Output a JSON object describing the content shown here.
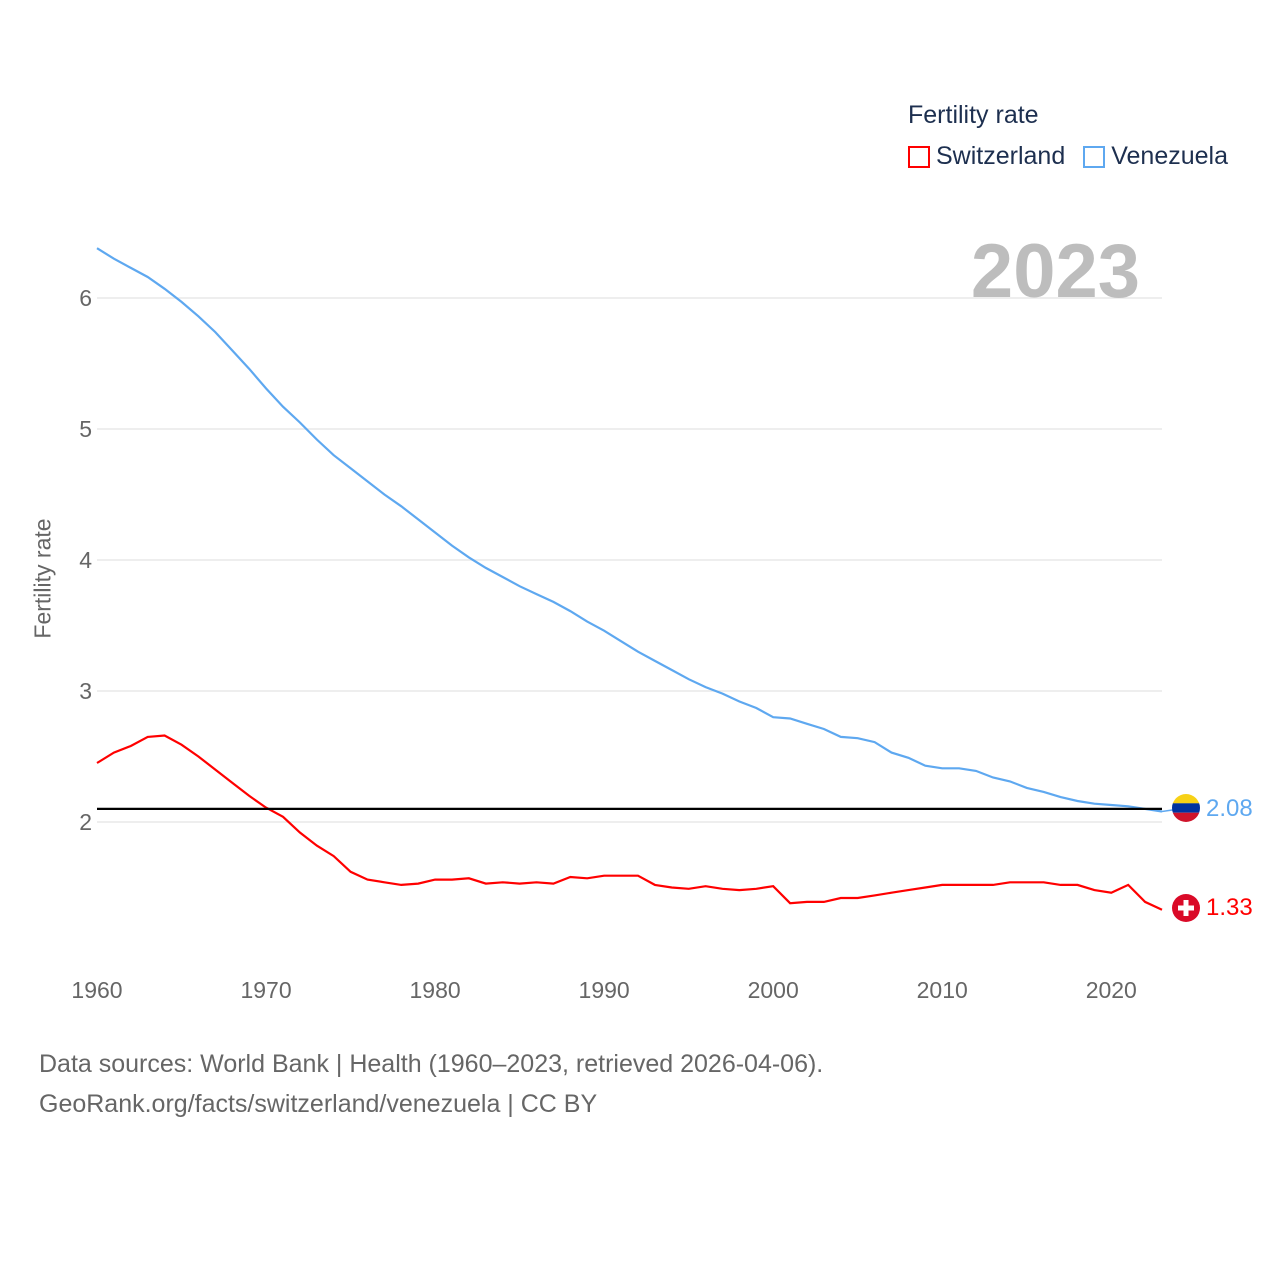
{
  "chart_data": {
    "type": "line",
    "title": "Fertility rate",
    "xlabel": "",
    "ylabel": "Fertility rate",
    "year_label": "2023",
    "x": [
      1960,
      1961,
      1962,
      1963,
      1964,
      1965,
      1966,
      1967,
      1968,
      1969,
      1970,
      1971,
      1972,
      1973,
      1974,
      1975,
      1976,
      1977,
      1978,
      1979,
      1980,
      1981,
      1982,
      1983,
      1984,
      1985,
      1986,
      1987,
      1988,
      1989,
      1990,
      1991,
      1992,
      1993,
      1994,
      1995,
      1996,
      1997,
      1998,
      1999,
      2000,
      2001,
      2002,
      2003,
      2004,
      2005,
      2006,
      2007,
      2008,
      2009,
      2010,
      2011,
      2012,
      2013,
      2014,
      2015,
      2016,
      2017,
      2018,
      2019,
      2020,
      2021,
      2022,
      2023
    ],
    "series": [
      {
        "name": "Switzerland",
        "color": "#ff0000",
        "end_label": "1.33",
        "values": [
          2.45,
          2.53,
          2.58,
          2.65,
          2.66,
          2.59,
          2.5,
          2.4,
          2.3,
          2.2,
          2.11,
          2.04,
          1.92,
          1.82,
          1.74,
          1.62,
          1.56,
          1.54,
          1.52,
          1.53,
          1.56,
          1.56,
          1.57,
          1.53,
          1.54,
          1.53,
          1.54,
          1.53,
          1.58,
          1.57,
          1.59,
          1.59,
          1.59,
          1.52,
          1.5,
          1.49,
          1.51,
          1.49,
          1.48,
          1.49,
          1.51,
          1.38,
          1.39,
          1.39,
          1.42,
          1.42,
          1.44,
          1.46,
          1.48,
          1.5,
          1.52,
          1.52,
          1.52,
          1.52,
          1.54,
          1.54,
          1.54,
          1.52,
          1.52,
          1.48,
          1.46,
          1.52,
          1.39,
          1.33
        ]
      },
      {
        "name": "Venezuela",
        "color": "#5ea8f0",
        "end_label": "2.08",
        "values": [
          6.38,
          6.3,
          6.23,
          6.16,
          6.07,
          5.97,
          5.86,
          5.74,
          5.6,
          5.46,
          5.31,
          5.17,
          5.05,
          4.92,
          4.8,
          4.7,
          4.6,
          4.5,
          4.41,
          4.31,
          4.21,
          4.11,
          4.02,
          3.94,
          3.87,
          3.8,
          3.74,
          3.68,
          3.61,
          3.53,
          3.46,
          3.38,
          3.3,
          3.23,
          3.16,
          3.09,
          3.03,
          2.98,
          2.92,
          2.87,
          2.8,
          2.79,
          2.75,
          2.71,
          2.65,
          2.64,
          2.61,
          2.53,
          2.49,
          2.43,
          2.41,
          2.41,
          2.39,
          2.34,
          2.31,
          2.26,
          2.23,
          2.19,
          2.16,
          2.14,
          2.13,
          2.12,
          2.1,
          2.08
        ]
      }
    ],
    "reference_line": 2.1,
    "xticks": [
      "1960",
      "1970",
      "1980",
      "1990",
      "2000",
      "2010",
      "2020"
    ],
    "yticks": [
      "2",
      "3",
      "4",
      "5",
      "6"
    ],
    "xlim": [
      1960,
      2023
    ],
    "ylim": [
      1.0,
      6.4
    ],
    "grid": true,
    "legend_position": "top-right"
  },
  "footer": {
    "line1": "Data sources: World Bank | Health (1960–2023, retrieved 2026-04-06).",
    "line2": "GeoRank.org/facts/switzerland/venezuela | CC BY"
  }
}
